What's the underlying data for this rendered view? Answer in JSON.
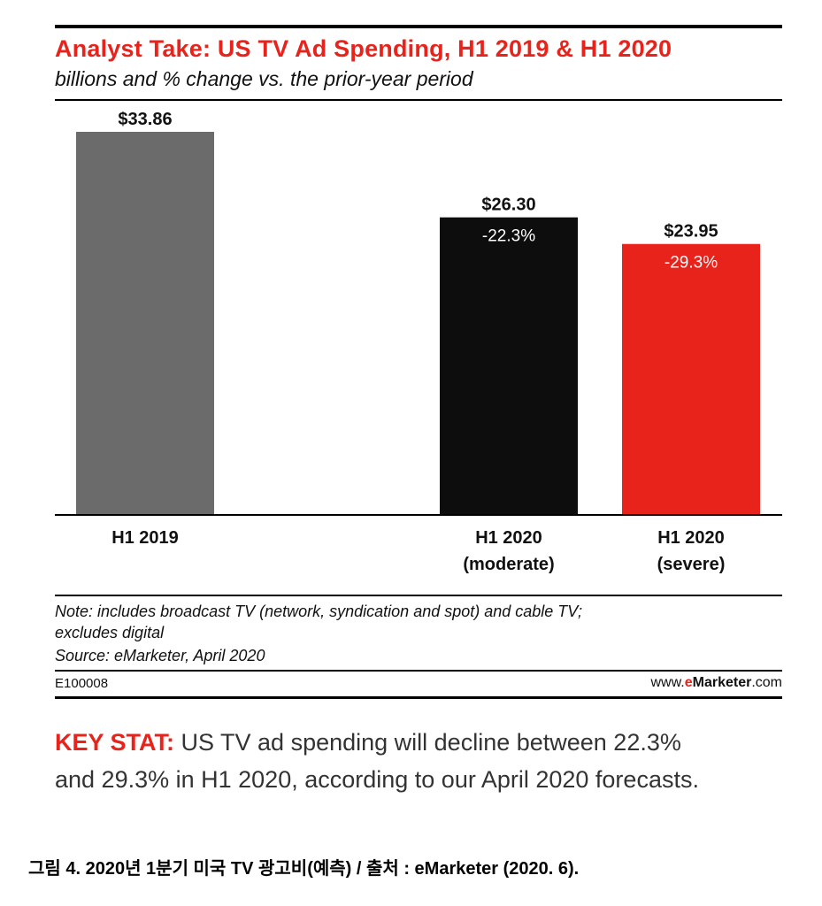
{
  "header": {
    "title": "Analyst Take: US TV Ad Spending, H1 2019 & H1 2020",
    "subtitle": "billions and % change vs. the prior-year period"
  },
  "chart_data": {
    "type": "bar",
    "title": "Analyst Take: US TV Ad Spending, H1 2019 & H1 2020",
    "subtitle": "billions and % change vs. the prior-year period",
    "categories": [
      "H1 2019",
      "H1 2020\n(moderate)",
      "H1 2020\n(severe)"
    ],
    "values": [
      33.86,
      26.3,
      23.95
    ],
    "value_labels": [
      "$33.86",
      "$26.30",
      "$23.95"
    ],
    "change_labels": [
      "",
      "-22.3%",
      "-29.3%"
    ],
    "colors": [
      "#6b6b6b",
      "#0d0d0d",
      "#e8231b"
    ],
    "ylim": [
      0,
      33.86
    ],
    "grid": false,
    "xlabel": "",
    "ylabel": ""
  },
  "footer": {
    "note_line1": "Note: includes broadcast TV (network, syndication and spot) and cable TV;",
    "note_line2": "excludes digital",
    "source": "Source: eMarketer, April 2020",
    "code": "E100008",
    "site_prefix": "www.",
    "site_e": "e",
    "site_brand": "Marketer",
    "site_suffix": ".com"
  },
  "keystat": {
    "label": "KEY STAT:",
    "text": " US TV ad spending will decline between 22.3% and 29.3% in H1 2020, according to our April 2020 forecasts."
  },
  "caption": "그림 4. 2020년 1분기 미국 TV 광고비(예측) / 출처 : eMarketer (2020. 6)."
}
